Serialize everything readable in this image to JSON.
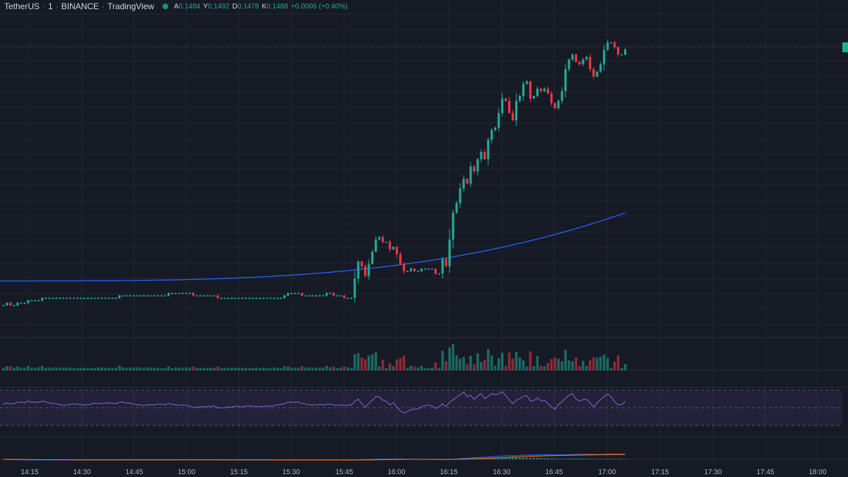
{
  "legend": {
    "symbol": "TetherUS",
    "interval": "1",
    "exchange": "BINANCE",
    "source": "TradingView",
    "o_label": "A",
    "o_value": "0.1484",
    "h_label": "Y",
    "h_value": "0.1492",
    "l_label": "D",
    "l_value": "0.1478",
    "c_label": "K",
    "c_value": "0.1488",
    "change": "+0.0006 (+0.40%)"
  },
  "colors": {
    "up": "#22ab94",
    "down": "#f23645",
    "ma": "#2962ff",
    "rsi": "#7e57c2",
    "macd": "#2962ff",
    "signal": "#ff6d00",
    "background": "#161a25",
    "grid": "#232733"
  },
  "chart_data": {
    "type": "candlestick",
    "start_time": "14:05",
    "interval_minutes": 1,
    "x_ticks": [
      "14:15",
      "14:30",
      "14:45",
      "15:00",
      "15:15",
      "15:30",
      "15:45",
      "16:00",
      "16:15",
      "16:30",
      "16:45",
      "17:00",
      "17:15",
      "17:30",
      "17:45",
      "18:00"
    ],
    "closes": [
      0.1383,
      0.1384,
      0.1383,
      0.1383,
      0.1384,
      0.1384,
      0.1384,
      0.1385,
      0.1385,
      0.1385,
      0.1385,
      0.1386,
      0.1386,
      0.1386,
      0.1386,
      0.1386,
      0.1386,
      0.1386,
      0.1386,
      0.1386,
      0.1386,
      0.1386,
      0.1386,
      0.1386,
      0.1386,
      0.1386,
      0.1386,
      0.1386,
      0.1386,
      0.1386,
      0.1386,
      0.1386,
      0.1386,
      0.1387,
      0.1387,
      0.1387,
      0.1387,
      0.1387,
      0.1387,
      0.1387,
      0.1387,
      0.1387,
      0.1387,
      0.1387,
      0.1387,
      0.1387,
      0.1387,
      0.1388,
      0.1388,
      0.1388,
      0.1388,
      0.1388,
      0.1388,
      0.1388,
      0.1387,
      0.1387,
      0.1387,
      0.1387,
      0.1387,
      0.1387,
      0.1387,
      0.1386,
      0.1386,
      0.1386,
      0.1386,
      0.1386,
      0.1386,
      0.1386,
      0.1386,
      0.1386,
      0.1386,
      0.1386,
      0.1386,
      0.1386,
      0.1386,
      0.1386,
      0.1386,
      0.1386,
      0.1386,
      0.1386,
      0.1387,
      0.1388,
      0.1388,
      0.1388,
      0.1388,
      0.1387,
      0.1387,
      0.1387,
      0.1387,
      0.1387,
      0.1387,
      0.1387,
      0.1388,
      0.1388,
      0.1387,
      0.1387,
      0.1387,
      0.1386,
      0.1386,
      0.1386,
      0.1394,
      0.1401,
      0.1399,
      0.1395,
      0.14,
      0.1405,
      0.141,
      0.1411,
      0.1409,
      0.1409,
      0.1406,
      0.1407,
      0.1404,
      0.14,
      0.1397,
      0.1397,
      0.1398,
      0.1397,
      0.1397,
      0.1398,
      0.1398,
      0.1398,
      0.1398,
      0.1396,
      0.1396,
      0.1402,
      0.1399,
      0.141,
      0.1421,
      0.1425,
      0.1431,
      0.1435,
      0.1433,
      0.144,
      0.1438,
      0.1443,
      0.1446,
      0.1443,
      0.1451,
      0.1455,
      0.1456,
      0.1462,
      0.1468,
      0.1467,
      0.1462,
      0.1459,
      0.1467,
      0.1469,
      0.1474,
      0.1475,
      0.1468,
      0.1469,
      0.1472,
      0.1471,
      0.1472,
      0.147,
      0.1466,
      0.1464,
      0.1467,
      0.1471,
      0.148,
      0.1484,
      0.1486,
      0.1483,
      0.1482,
      0.1484,
      0.1485,
      0.148,
      0.1477,
      0.1479,
      0.1482,
      0.1488,
      0.1491,
      0.1491,
      0.1489,
      0.1486,
      0.1486,
      0.1488
    ],
    "ma": {
      "start": 0.1393,
      "end": 0.1421
    },
    "panes": [
      "price",
      "volume",
      "rsi",
      "macd"
    ]
  }
}
